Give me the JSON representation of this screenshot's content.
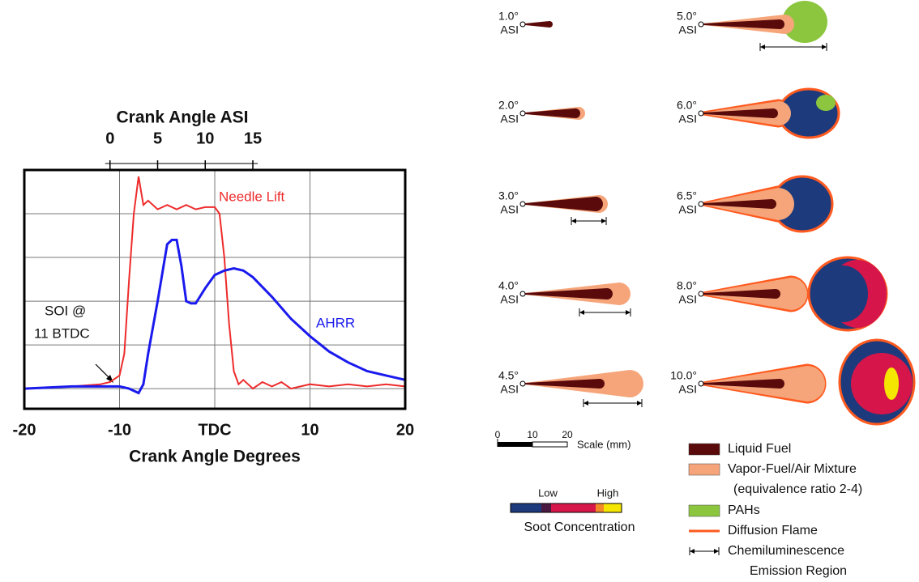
{
  "chart_data": {
    "type": "line",
    "x_label": "Crank Angle Degrees",
    "x2_label": "Crank Angle ASI",
    "xlim": [
      -20,
      20
    ],
    "xticks": [
      -20,
      -10,
      {
        "value": 0,
        "label": "TDC"
      },
      10,
      20
    ],
    "x2lim": [
      -9,
      31
    ],
    "x2ticks": [
      0,
      5,
      10,
      15
    ],
    "ylim": [
      -0.46,
      5
    ],
    "yticks": [
      0,
      1,
      2,
      3,
      4
    ],
    "grid": true,
    "series": [
      {
        "name": "Needle Lift",
        "color": "#ee2b2b",
        "x": [
          -20,
          -15,
          -12,
          -11,
          -10,
          -9.5,
          -9,
          -8.5,
          -8,
          -7.5,
          -7,
          -6,
          -5,
          -4,
          -3,
          -2,
          -1,
          0,
          0.5,
          1,
          1.5,
          2,
          2.5,
          3,
          4,
          5,
          6,
          7,
          8,
          10,
          12,
          14,
          16,
          18,
          20
        ],
        "values": [
          0,
          0.05,
          0.1,
          0.15,
          0.3,
          0.8,
          2.5,
          4.0,
          4.85,
          4.2,
          4.3,
          4.1,
          4.2,
          4.1,
          4.2,
          4.1,
          4.15,
          4.15,
          4.0,
          3.0,
          1.5,
          0.4,
          0.1,
          0.2,
          0,
          0.15,
          0.05,
          0.15,
          0,
          0.1,
          0.05,
          0.1,
          0.05,
          0.1,
          0.05
        ]
      },
      {
        "name": "AHRR",
        "color": "#1a1aee",
        "x": [
          -20,
          -15,
          -10,
          -9,
          -8,
          -7.5,
          -7,
          -6,
          -5,
          -4.5,
          -4,
          -3.5,
          -3,
          -2.5,
          -2,
          -1,
          0,
          1,
          2,
          3,
          4,
          6,
          8,
          10,
          12,
          14,
          16,
          18,
          20
        ],
        "values": [
          0,
          0.05,
          0.05,
          0,
          -0.1,
          0.1,
          0.8,
          2.0,
          3.3,
          3.4,
          3.4,
          2.8,
          2.0,
          1.95,
          1.95,
          2.3,
          2.6,
          2.7,
          2.75,
          2.7,
          2.55,
          2.1,
          1.6,
          1.2,
          0.85,
          0.6,
          0.4,
          0.3,
          0.2
        ]
      }
    ],
    "annotations": [
      "SOI @",
      "11 BTDC"
    ]
  },
  "diagram": {
    "panels": [
      {
        "angle": "1.0°",
        "unit": "ASI"
      },
      {
        "angle": "2.0°",
        "unit": "ASI"
      },
      {
        "angle": "3.0°",
        "unit": "ASI"
      },
      {
        "angle": "4.0°",
        "unit": "ASI"
      },
      {
        "angle": "4.5°",
        "unit": "ASI"
      },
      {
        "angle": "5.0°",
        "unit": "ASI"
      },
      {
        "angle": "6.0°",
        "unit": "ASI"
      },
      {
        "angle": "6.5°",
        "unit": "ASI"
      },
      {
        "angle": "8.0°",
        "unit": "ASI"
      },
      {
        "angle": "10.0°",
        "unit": "ASI"
      }
    ],
    "scale": {
      "ticks": [
        0,
        10,
        20
      ],
      "label": "Scale (mm)"
    },
    "colorbar": {
      "low": "Low",
      "high": "High",
      "label": "Soot Concentration"
    },
    "legend": [
      {
        "label": "Liquid Fuel",
        "color": "#5a0a0a"
      },
      {
        "label": "Vapor-Fuel/Air Mixture",
        "note": "(equivalence ratio 2-4)",
        "color": "#f6a57a"
      },
      {
        "label": "PAHs",
        "color": "#8cc63f"
      },
      {
        "label": "Diffusion Flame",
        "color": "#ff5a1f"
      },
      {
        "label": "Chemiluminescence",
        "note": "Emission Region"
      }
    ]
  }
}
